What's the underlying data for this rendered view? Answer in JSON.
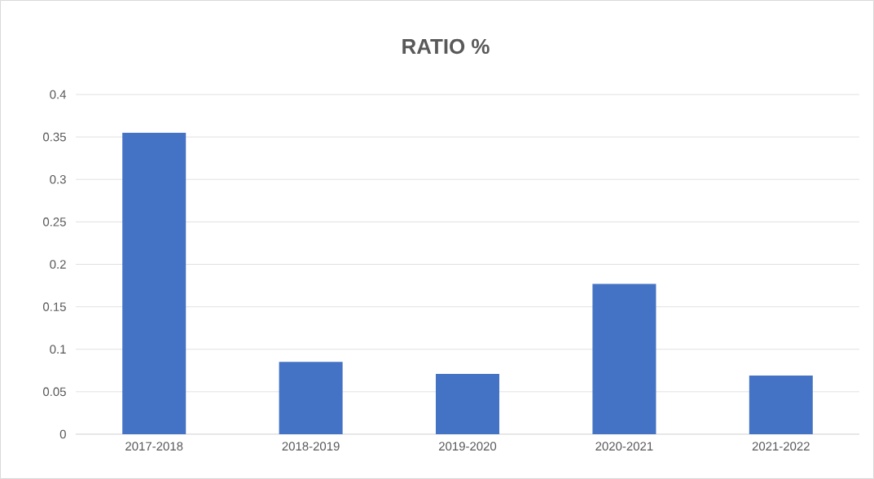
{
  "chart_data": {
    "type": "bar",
    "title": "RATIO %",
    "categories": [
      "2017-2018",
      "2018-2019",
      "2019-2020",
      "2020-2021",
      "2021-2022"
    ],
    "values": [
      0.355,
      0.085,
      0.071,
      0.177,
      0.069
    ],
    "color": "#4472c4",
    "ylim": [
      0,
      0.4
    ],
    "yticks": [
      0,
      0.05,
      0.1,
      0.15,
      0.2,
      0.25,
      0.3,
      0.35,
      0.4
    ],
    "grid": "y"
  }
}
